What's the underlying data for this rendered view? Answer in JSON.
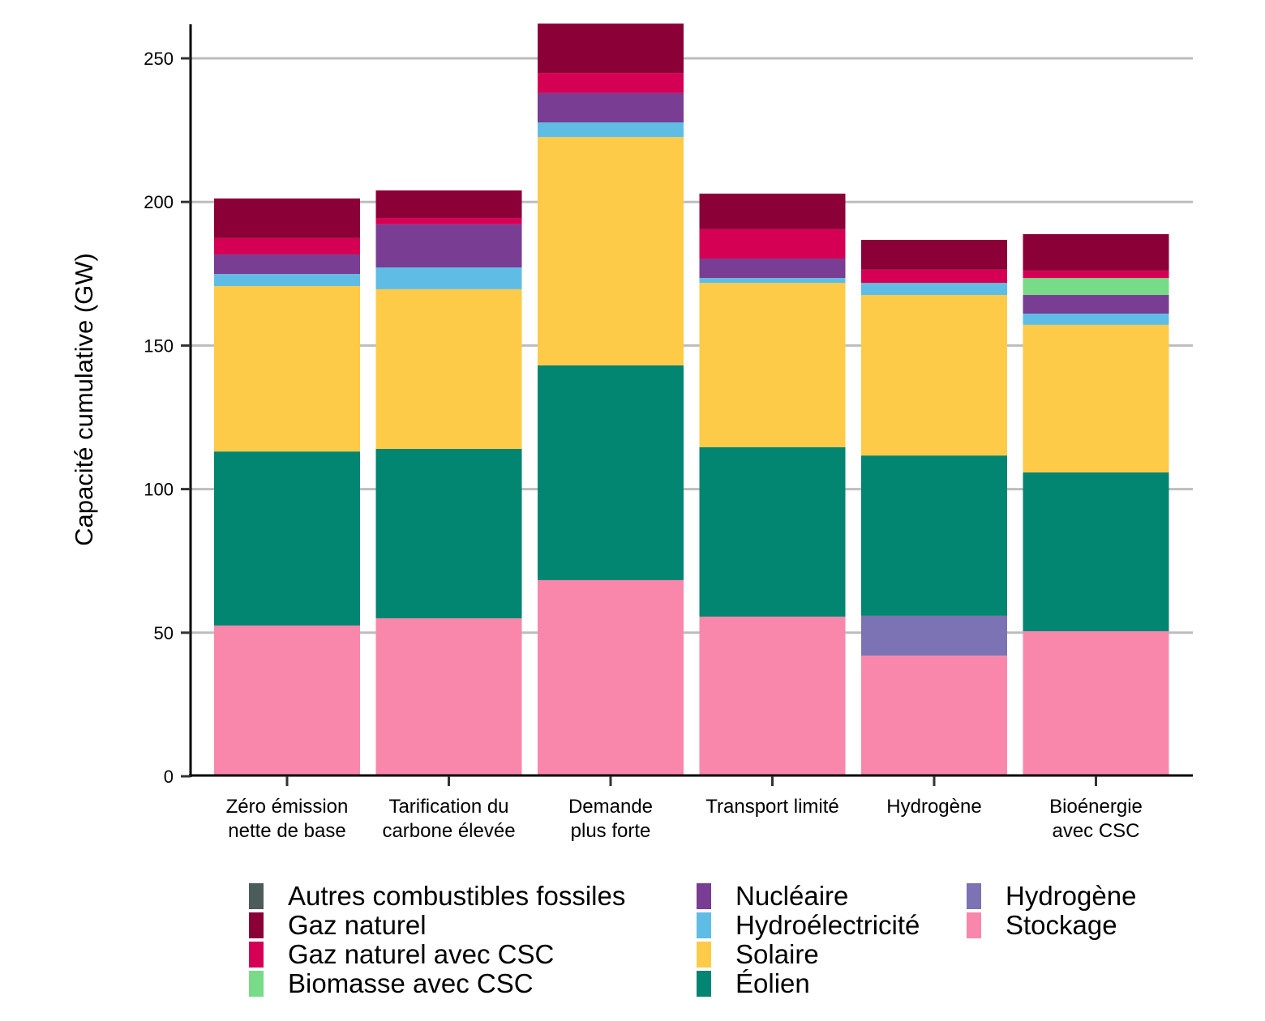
{
  "chart_data": {
    "type": "bar",
    "stacked": true,
    "title": "",
    "xlabel": "",
    "ylabel": "Capacité cumulative (GW)",
    "ylim": [
      0,
      262
    ],
    "yticks": [
      0,
      50,
      100,
      150,
      200,
      250
    ],
    "grid": "horizontal",
    "legend_position": "bottom",
    "categories": [
      [
        "Zéro émission",
        "nette de base"
      ],
      [
        "Tarification du",
        "carbone élevée"
      ],
      [
        "Demande",
        "plus forte"
      ],
      [
        "Transport limité"
      ],
      [
        "Hydrogène"
      ],
      [
        "Bioénergie",
        "avec CSC"
      ]
    ],
    "series": [
      {
        "name": "Stockage",
        "color": "#F987AB",
        "values": [
          52.5,
          55.0,
          68.3,
          55.6,
          42.0,
          50.5
        ]
      },
      {
        "name": "Hydrogène",
        "color": "#7B73B3",
        "values": [
          0,
          0,
          0,
          0,
          13.9,
          0
        ]
      },
      {
        "name": "Éolien",
        "color": "#028571",
        "values": [
          60.6,
          59.0,
          74.8,
          59.0,
          55.8,
          55.3
        ]
      },
      {
        "name": "Solaire",
        "color": "#FDCB48",
        "values": [
          57.6,
          55.6,
          79.5,
          57.2,
          55.9,
          51.4
        ]
      },
      {
        "name": "Hydroélectricité",
        "color": "#5FBDE5",
        "values": [
          4.2,
          7.6,
          5.1,
          1.7,
          4.2,
          3.9
        ]
      },
      {
        "name": "Nucléaire",
        "color": "#793D93",
        "values": [
          6.8,
          15.0,
          10.2,
          6.8,
          0,
          6.5
        ]
      },
      {
        "name": "Biomasse avec CSC",
        "color": "#77DB87",
        "values": [
          0,
          0,
          0,
          0,
          0,
          5.9
        ]
      },
      {
        "name": "Gaz naturel avec CSC",
        "color": "#D50054",
        "values": [
          5.7,
          2.2,
          7.0,
          10.2,
          4.6,
          2.6
        ]
      },
      {
        "name": "Gaz naturel",
        "color": "#8B0037",
        "values": [
          13.8,
          9.6,
          17.2,
          12.4,
          10.4,
          12.7
        ]
      },
      {
        "name": "Autres combustibles fossiles",
        "color": "#4B5C5B",
        "values": [
          0,
          0,
          0,
          0,
          0,
          0
        ]
      }
    ]
  },
  "legend": {
    "items": [
      {
        "label": "Autres combustibles fossiles",
        "color": "#4B5C5B"
      },
      {
        "label": "Gaz naturel",
        "color": "#8B0037"
      },
      {
        "label": "Gaz naturel avec CSC",
        "color": "#D50054"
      },
      {
        "label": "Biomasse avec CSC",
        "color": "#77DB87"
      },
      {
        "label": "Nucléaire",
        "color": "#793D93"
      },
      {
        "label": "Hydroélectricité",
        "color": "#5FBDE5"
      },
      {
        "label": "Solaire",
        "color": "#FDCB48"
      },
      {
        "label": "Éolien",
        "color": "#028571"
      },
      {
        "label": "Hydrogène",
        "color": "#7B73B3"
      },
      {
        "label": "Stockage",
        "color": "#F987AB"
      }
    ]
  }
}
